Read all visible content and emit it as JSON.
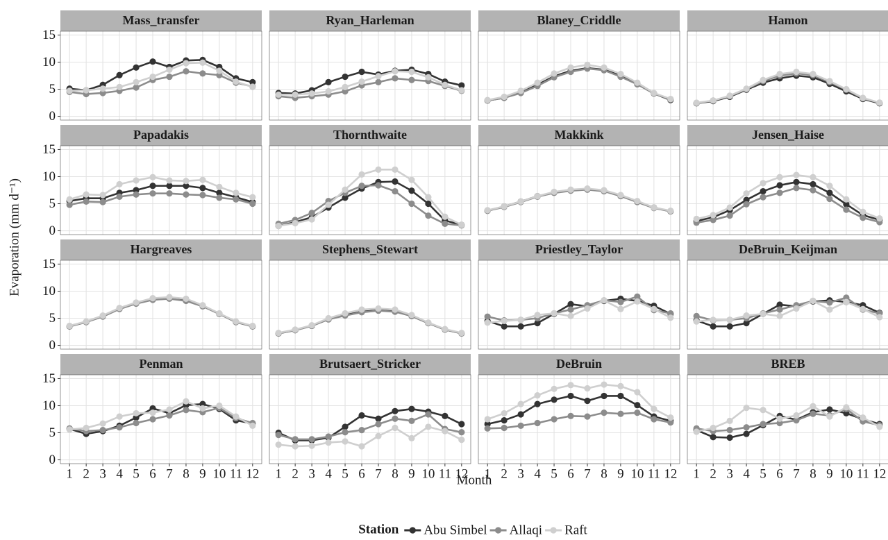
{
  "chart_data": {
    "type": "line",
    "xlabel": "Month",
    "ylabel": "Evaporation (mm d⁻¹)",
    "legend_title": "Station",
    "legend_position": "bottom",
    "grid": true,
    "x": [
      1,
      2,
      3,
      4,
      5,
      6,
      7,
      8,
      9,
      10,
      11,
      12
    ],
    "xlim": [
      0.45,
      12.55
    ],
    "xticks": [
      1,
      2,
      3,
      4,
      5,
      6,
      7,
      8,
      9,
      10,
      11,
      12
    ],
    "ylim": [
      -0.7,
      15.7
    ],
    "yticks": [
      0,
      5,
      10,
      15
    ],
    "series": [
      {
        "name": "Abu Simbel",
        "color": "#333333"
      },
      {
        "name": "Allaqi",
        "color": "#8c8c8c"
      },
      {
        "name": "Raft",
        "color": "#cfcfcf"
      }
    ],
    "facets": [
      {
        "title": "Mass_transfer",
        "series": [
          {
            "values": [
              5.1,
              4.8,
              5.8,
              7.6,
              9.0,
              10.1,
              9.1,
              10.3,
              10.4,
              9.1,
              7.0,
              6.3
            ]
          },
          {
            "values": [
              4.5,
              4.1,
              4.3,
              4.7,
              5.3,
              6.7,
              7.3,
              8.3,
              7.9,
              7.6,
              6.2,
              5.5
            ]
          },
          {
            "values": [
              4.7,
              4.8,
              5.1,
              5.4,
              6.3,
              7.3,
              8.6,
              9.8,
              9.9,
              8.4,
              6.4,
              5.4
            ]
          }
        ]
      },
      {
        "title": "Ryan_Harleman",
        "series": [
          {
            "values": [
              4.3,
              4.2,
              4.8,
              6.3,
              7.3,
              8.2,
              7.7,
              8.4,
              8.6,
              7.8,
              6.4,
              5.7
            ]
          },
          {
            "values": [
              3.7,
              3.4,
              3.7,
              4.0,
              4.6,
              5.7,
              6.3,
              7.0,
              6.7,
              6.5,
              5.6,
              4.7
            ]
          },
          {
            "values": [
              4.0,
              4.0,
              4.2,
              4.6,
              5.4,
              6.4,
              7.4,
              8.3,
              8.2,
              7.2,
              5.8,
              4.8
            ]
          }
        ]
      },
      {
        "title": "Blaney_Criddle",
        "series": [
          {
            "values": [
              2.9,
              3.4,
              4.4,
              5.8,
              7.4,
              8.4,
              8.9,
              8.6,
              7.5,
              6.0,
              4.2,
              3.0
            ]
          },
          {
            "values": [
              2.9,
              3.4,
              4.3,
              5.6,
              7.2,
              8.2,
              8.8,
              8.5,
              7.3,
              5.9,
              4.2,
              3.1
            ]
          },
          {
            "values": [
              3.0,
              3.6,
              4.7,
              6.2,
              7.9,
              9.0,
              9.5,
              9.0,
              7.8,
              6.2,
              4.3,
              3.2
            ]
          }
        ]
      },
      {
        "title": "Hamon",
        "series": [
          {
            "values": [
              2.4,
              2.8,
              3.6,
              4.9,
              6.2,
              7.0,
              7.5,
              7.2,
              6.0,
              4.6,
              3.2,
              2.4
            ]
          },
          {
            "values": [
              2.4,
              2.9,
              3.7,
              5.0,
              6.5,
              7.5,
              7.9,
              7.6,
              6.3,
              4.9,
              3.3,
              2.5
            ]
          },
          {
            "values": [
              2.5,
              2.9,
              3.8,
              5.1,
              6.7,
              7.8,
              8.2,
              7.8,
              6.5,
              5.0,
              3.4,
              2.5
            ]
          }
        ]
      },
      {
        "title": "Papadakis",
        "series": [
          {
            "values": [
              5.5,
              6.0,
              6.0,
              7.0,
              7.5,
              8.3,
              8.3,
              8.3,
              7.9,
              7.0,
              6.2,
              5.3
            ]
          },
          {
            "values": [
              4.8,
              5.4,
              5.3,
              6.3,
              6.7,
              6.9,
              6.9,
              6.7,
              6.6,
              6.1,
              5.8,
              5.0
            ]
          },
          {
            "values": [
              5.8,
              6.7,
              6.6,
              8.6,
              9.3,
              9.9,
              9.3,
              9.2,
              9.4,
              8.1,
              7.0,
              6.2
            ]
          }
        ]
      },
      {
        "title": "Thornthwaite",
        "series": [
          {
            "values": [
              0.9,
              1.6,
              2.5,
              4.3,
              6.1,
              7.8,
              9.0,
              9.1,
              7.4,
              5.0,
              1.9,
              1.1
            ]
          },
          {
            "values": [
              1.3,
              2.0,
              3.3,
              5.5,
              7.0,
              8.3,
              8.4,
              7.3,
              5.0,
              2.8,
              1.3,
              1.0
            ]
          },
          {
            "values": [
              0.9,
              1.4,
              2.1,
              4.8,
              7.6,
              10.4,
              11.3,
              11.3,
              9.4,
              6.2,
              2.6,
              1.1
            ]
          }
        ]
      },
      {
        "title": "Makkink",
        "series": [
          {
            "values": [
              3.7,
              4.5,
              5.4,
              6.4,
              7.1,
              7.5,
              7.7,
              7.4,
              6.5,
              5.4,
              4.3,
              3.6
            ]
          },
          {
            "values": [
              3.7,
              4.4,
              5.3,
              6.3,
              7.0,
              7.4,
              7.6,
              7.3,
              6.4,
              5.3,
              4.2,
              3.6
            ]
          },
          {
            "values": [
              3.8,
              4.5,
              5.4,
              6.4,
              7.2,
              7.6,
              7.8,
              7.5,
              6.6,
              5.5,
              4.3,
              3.7
            ]
          }
        ]
      },
      {
        "title": "Jensen_Haise",
        "series": [
          {
            "values": [
              1.8,
              2.5,
              3.8,
              5.7,
              7.3,
              8.4,
              9.0,
              8.6,
              7.0,
              4.9,
              2.9,
              2.0
            ]
          },
          {
            "values": [
              1.5,
              2.0,
              2.8,
              4.9,
              6.2,
              7.0,
              7.9,
              7.5,
              5.9,
              3.9,
              2.4,
              1.6
            ]
          },
          {
            "values": [
              2.2,
              2.9,
              4.3,
              6.9,
              8.8,
              9.9,
              10.3,
              9.9,
              8.3,
              5.8,
              3.5,
              2.3
            ]
          }
        ]
      },
      {
        "title": "Hargreaves",
        "series": [
          {
            "values": [
              3.5,
              4.3,
              5.4,
              6.8,
              7.8,
              8.5,
              8.7,
              8.3,
              7.3,
              5.8,
              4.3,
              3.5
            ]
          },
          {
            "values": [
              3.5,
              4.3,
              5.3,
              6.7,
              7.7,
              8.4,
              8.6,
              8.2,
              7.2,
              5.8,
              4.3,
              3.5
            ]
          },
          {
            "values": [
              3.6,
              4.4,
              5.5,
              6.9,
              7.9,
              8.7,
              8.9,
              8.6,
              7.4,
              5.9,
              4.4,
              3.6
            ]
          }
        ]
      },
      {
        "title": "Stephens_Stewart",
        "series": [
          {
            "values": [
              2.2,
              2.8,
              3.6,
              4.8,
              5.6,
              6.2,
              6.5,
              6.3,
              5.4,
              4.1,
              2.9,
              2.2
            ]
          },
          {
            "values": [
              2.2,
              2.8,
              3.6,
              4.8,
              5.5,
              6.1,
              6.4,
              6.2,
              5.4,
              4.1,
              2.9,
              2.2
            ]
          },
          {
            "values": [
              2.3,
              2.9,
              3.7,
              5.0,
              5.9,
              6.6,
              6.8,
              6.6,
              5.6,
              4.2,
              3.0,
              2.3
            ]
          }
        ]
      },
      {
        "title": "Priestley_Taylor",
        "series": [
          {
            "values": [
              4.5,
              3.5,
              3.5,
              4.1,
              5.8,
              7.6,
              7.2,
              8.2,
              8.6,
              8.2,
              7.3,
              5.8
            ]
          },
          {
            "values": [
              5.3,
              4.6,
              4.7,
              5.0,
              5.9,
              6.6,
              7.4,
              8.3,
              8.0,
              9.0,
              6.5,
              5.9
            ]
          },
          {
            "values": [
              4.2,
              4.5,
              4.7,
              5.6,
              5.9,
              5.4,
              6.8,
              8.3,
              6.7,
              8.1,
              6.7,
              5.1
            ]
          }
        ]
      },
      {
        "title": "DeBruin_Keijman",
        "series": [
          {
            "values": [
              4.6,
              3.5,
              3.5,
              4.1,
              5.8,
              7.5,
              7.2,
              8.1,
              8.3,
              8.0,
              7.4,
              6.0
            ]
          },
          {
            "values": [
              5.4,
              4.6,
              4.7,
              5.0,
              5.9,
              6.6,
              7.4,
              8.2,
              7.9,
              8.8,
              6.6,
              5.9
            ]
          },
          {
            "values": [
              4.4,
              4.7,
              4.7,
              5.5,
              5.8,
              5.4,
              6.8,
              8.2,
              6.6,
              8.0,
              6.7,
              5.2
            ]
          }
        ]
      },
      {
        "title": "Penman",
        "series": [
          {
            "values": [
              5.7,
              4.8,
              5.3,
              6.3,
              7.8,
              9.5,
              8.6,
              10.1,
              10.3,
              9.4,
              7.3,
              6.7
            ]
          },
          {
            "values": [
              5.8,
              5.3,
              5.5,
              6.0,
              6.8,
              7.5,
              8.2,
              9.2,
              8.8,
              9.6,
              7.7,
              6.8
            ]
          },
          {
            "values": [
              5.6,
              5.9,
              6.7,
              8.0,
              8.6,
              8.7,
              9.3,
              10.8,
              9.5,
              10.0,
              8.0,
              6.3
            ]
          }
        ]
      },
      {
        "title": "Brutsaert_Stricker",
        "series": [
          {
            "values": [
              5.0,
              3.6,
              3.6,
              4.1,
              6.1,
              8.2,
              7.6,
              9.0,
              9.4,
              8.9,
              8.1,
              6.6
            ]
          },
          {
            "values": [
              4.6,
              3.8,
              3.8,
              4.3,
              5.1,
              5.5,
              6.6,
              7.6,
              7.2,
              8.4,
              5.7,
              5.1
            ]
          },
          {
            "values": [
              2.8,
              2.5,
              2.6,
              3.2,
              3.4,
              2.5,
              4.4,
              5.9,
              4.0,
              6.1,
              5.3,
              3.7
            ]
          }
        ]
      },
      {
        "title": "DeBruin",
        "series": [
          {
            "values": [
              6.6,
              7.3,
              8.4,
              10.3,
              11.1,
              11.8,
              10.9,
              11.8,
              11.8,
              10.1,
              8.0,
              7.2
            ]
          },
          {
            "values": [
              5.8,
              5.9,
              6.3,
              6.8,
              7.5,
              8.1,
              8.0,
              8.7,
              8.5,
              8.7,
              7.5,
              6.9
            ]
          },
          {
            "values": [
              7.5,
              8.6,
              10.3,
              11.9,
              13.1,
              13.8,
              13.2,
              13.9,
              13.6,
              12.5,
              9.4,
              7.8
            ]
          }
        ]
      },
      {
        "title": "BREB",
        "series": [
          {
            "values": [
              5.5,
              4.2,
              4.1,
              4.8,
              6.4,
              8.1,
              7.4,
              8.8,
              9.3,
              8.6,
              7.5,
              6.6
            ]
          },
          {
            "values": [
              5.8,
              5.3,
              5.5,
              6.0,
              6.6,
              6.8,
              7.3,
              8.5,
              8.2,
              9.4,
              7.1,
              6.4
            ]
          },
          {
            "values": [
              5.2,
              5.9,
              7.2,
              9.6,
              9.2,
              7.6,
              8.2,
              9.9,
              8.0,
              9.7,
              7.8,
              6.1
            ]
          }
        ]
      }
    ]
  }
}
